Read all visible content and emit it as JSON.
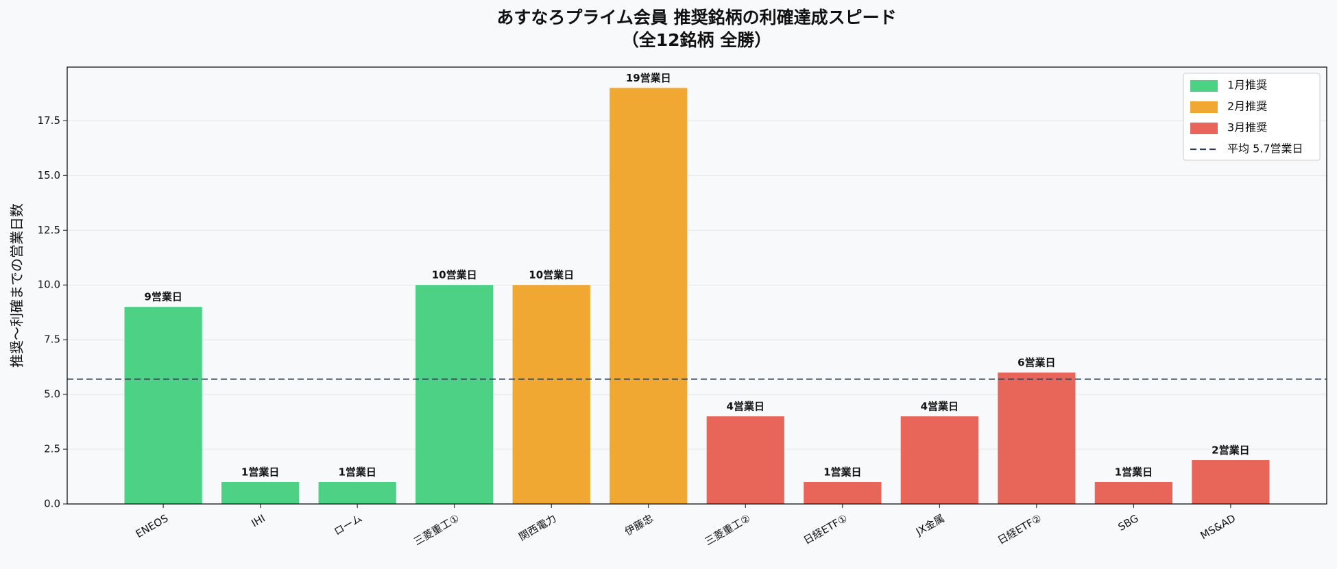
{
  "chart_data": {
    "type": "bar",
    "title": "あすなろプライム会員 推奨銘柄の利確達成スピード",
    "subtitle": "（全12銘柄 全勝）",
    "y_label": "推奨〜利確までの営業日数",
    "categories": [
      "ENEOS",
      "IHI",
      "ローム",
      "三菱重工①",
      "関西電力",
      "伊藤忠",
      "三菱重工②",
      "日経ETF①",
      "JX金属",
      "日経ETF②",
      "SBG",
      "MS&AD"
    ],
    "series": [
      {
        "name": "1月推奨",
        "color": "#4cd185",
        "values": [
          9,
          1,
          1,
          10,
          null,
          null,
          null,
          null,
          null,
          null,
          null,
          null
        ],
        "value_labels": [
          "9営業日",
          "1営業日",
          "1営業日",
          "10営業日",
          null,
          null,
          null,
          null,
          null,
          null,
          null,
          null
        ]
      },
      {
        "name": "2月推奨",
        "color": "#f0a833",
        "values": [
          null,
          null,
          null,
          null,
          10,
          19,
          null,
          null,
          null,
          null,
          null,
          null
        ],
        "value_labels": [
          null,
          null,
          null,
          null,
          "10営業日",
          "19営業日",
          null,
          null,
          null,
          null,
          null,
          null
        ]
      },
      {
        "name": "3月推奨",
        "color": "#e8655a",
        "values": [
          null,
          null,
          null,
          null,
          null,
          null,
          4,
          1,
          4,
          6,
          1,
          2
        ],
        "value_labels": [
          null,
          null,
          null,
          null,
          null,
          null,
          "4営業日",
          "1営業日",
          "4営業日",
          "6営業日",
          "1営業日",
          "2営業日"
        ]
      }
    ],
    "mean": {
      "value": 5.7,
      "label": "平均 5.7営業日",
      "color": "#2c3e50"
    },
    "ylim": [
      0,
      19.95
    ],
    "yticks": [
      {
        "value": 0,
        "label": "0.0"
      },
      2.5,
      {
        "value": 5,
        "label": "5.0"
      },
      7.5,
      {
        "value": 10,
        "label": "10.0"
      },
      12.5,
      {
        "value": 15,
        "label": "15.0"
      },
      17.5
    ],
    "grid": true,
    "legend": "upper right"
  }
}
